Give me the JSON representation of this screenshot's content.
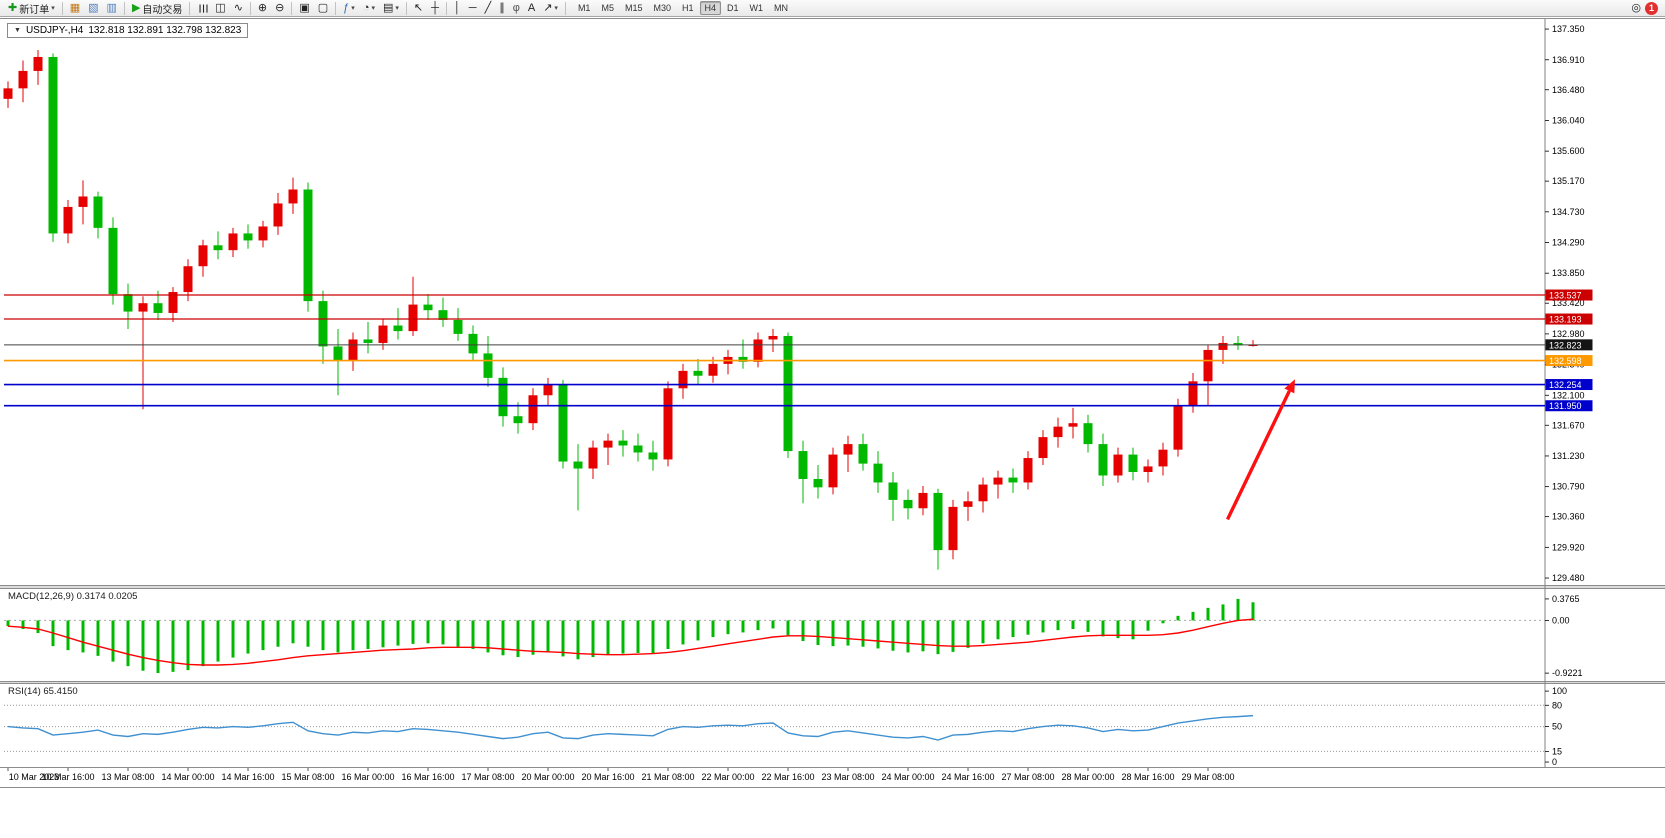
{
  "toolbar": {
    "items": [
      {
        "name": "new-order",
        "glyph": "✚",
        "glyph_color": "#18971c",
        "label": "新订单",
        "caret": true
      },
      {
        "sep": true
      },
      {
        "name": "charts",
        "glyph": "▦",
        "glyph_color": "#c07818"
      },
      {
        "name": "profiles",
        "glyph": "▧",
        "glyph_color": "#4f7dbd"
      },
      {
        "name": "navigator",
        "glyph": "▥",
        "glyph_color": "#4f7dbd"
      },
      {
        "sep": true
      },
      {
        "name": "autotrade",
        "glyph": "▶",
        "glyph_color": "#17a317",
        "label": "自动交易"
      },
      {
        "sep": true
      },
      {
        "name": "bar-chart",
        "glyph": "☰",
        "rot": true
      },
      {
        "name": "candlestick-chart",
        "glyph": "◫"
      },
      {
        "name": "line-chart",
        "glyph": "∿"
      },
      {
        "sep": true
      },
      {
        "name": "zoom-in",
        "glyph": "⊕"
      },
      {
        "name": "zoom-out",
        "glyph": "⊖"
      },
      {
        "sep": true
      },
      {
        "name": "tile-windows",
        "glyph": "▣"
      },
      {
        "name": "auto-arrange",
        "glyph": "▢"
      },
      {
        "sep": true
      },
      {
        "name": "indicators",
        "glyph": "ƒ",
        "glyph_color": "#2d6cb4",
        "caret": true
      },
      {
        "name": "periods",
        "glyph": "◔",
        "caret": true
      },
      {
        "name": "templates",
        "glyph": "▤",
        "caret": true
      },
      {
        "sep": true
      },
      {
        "name": "cursor",
        "glyph": "↖"
      },
      {
        "name": "crosshair",
        "glyph": "┼"
      },
      {
        "sep": true
      },
      {
        "name": "vertical-line",
        "glyph": "│"
      },
      {
        "name": "horizontal-line",
        "glyph": "─"
      },
      {
        "name": "trendline",
        "glyph": "╱"
      },
      {
        "name": "equidistant-channel",
        "glyph": "∥"
      },
      {
        "name": "fibonacci",
        "glyph": "φ",
        "glyph_color": "#555555"
      },
      {
        "name": "text-label",
        "glyph": "A"
      },
      {
        "name": "arrows-tool",
        "glyph": "↗",
        "caret": true
      },
      {
        "sep": true
      }
    ],
    "timeframes": [
      "M1",
      "M5",
      "M15",
      "M30",
      "H1",
      "H4",
      "D1",
      "W1",
      "MN"
    ],
    "active_timeframe": "H4",
    "search_glyph": "◎",
    "notification_count": "1"
  },
  "chart": {
    "collapse_glyph": "▼",
    "title": "USDJPY-,H4",
    "ohlc": "132.818 132.891 132.798 132.823"
  },
  "chart_data": {
    "type": "candlestick",
    "symbol": "USDJPY-",
    "timeframe": "H4",
    "up_color": "#e60000",
    "down_color": "#00b800",
    "ylim": [
      129.38,
      137.48
    ],
    "y_ticks": [
      137.35,
      136.91,
      136.48,
      136.04,
      135.6,
      135.17,
      134.73,
      134.29,
      133.85,
      133.42,
      132.98,
      132.54,
      132.1,
      131.67,
      131.23,
      130.79,
      130.36,
      129.92,
      129.48
    ],
    "candles": [
      [
        136.35,
        136.6,
        136.22,
        136.5
      ],
      [
        136.5,
        136.9,
        136.3,
        136.75
      ],
      [
        136.75,
        137.05,
        136.55,
        136.95
      ],
      [
        136.95,
        137.0,
        134.3,
        134.42
      ],
      [
        134.42,
        134.9,
        134.28,
        134.8
      ],
      [
        134.8,
        135.18,
        134.55,
        134.95
      ],
      [
        134.95,
        135.02,
        134.35,
        134.5
      ],
      [
        134.5,
        134.65,
        133.4,
        133.55
      ],
      [
        133.55,
        133.7,
        133.05,
        133.3
      ],
      [
        133.3,
        133.52,
        131.9,
        133.42
      ],
      [
        133.42,
        133.6,
        133.18,
        133.28
      ],
      [
        133.28,
        133.65,
        133.15,
        133.58
      ],
      [
        133.58,
        134.05,
        133.45,
        133.95
      ],
      [
        133.95,
        134.33,
        133.8,
        134.25
      ],
      [
        134.25,
        134.45,
        134.05,
        134.18
      ],
      [
        134.18,
        134.5,
        134.08,
        134.42
      ],
      [
        134.42,
        134.55,
        134.2,
        134.32
      ],
      [
        134.32,
        134.6,
        134.22,
        134.52
      ],
      [
        134.52,
        135.0,
        134.4,
        134.85
      ],
      [
        134.85,
        135.22,
        134.7,
        135.05
      ],
      [
        135.05,
        135.15,
        133.3,
        133.45
      ],
      [
        133.45,
        133.6,
        132.55,
        132.8
      ],
      [
        132.8,
        133.05,
        132.1,
        132.6
      ],
      [
        132.6,
        133.0,
        132.45,
        132.9
      ],
      [
        132.9,
        133.15,
        132.7,
        132.85
      ],
      [
        132.85,
        133.2,
        132.75,
        133.1
      ],
      [
        133.1,
        133.35,
        132.9,
        133.02
      ],
      [
        133.02,
        133.8,
        132.95,
        133.4
      ],
      [
        133.4,
        133.55,
        133.18,
        133.32
      ],
      [
        133.32,
        133.5,
        133.08,
        133.18
      ],
      [
        133.18,
        133.35,
        132.88,
        132.98
      ],
      [
        132.98,
        133.1,
        132.6,
        132.7
      ],
      [
        132.7,
        132.95,
        132.22,
        132.35
      ],
      [
        132.35,
        132.5,
        131.65,
        131.8
      ],
      [
        131.8,
        132.0,
        131.55,
        131.7
      ],
      [
        131.7,
        132.2,
        131.6,
        132.1
      ],
      [
        132.1,
        132.35,
        131.95,
        132.25
      ],
      [
        132.25,
        132.32,
        131.05,
        131.15
      ],
      [
        131.15,
        131.4,
        130.45,
        131.05
      ],
      [
        131.05,
        131.45,
        130.9,
        131.35
      ],
      [
        131.35,
        131.55,
        131.1,
        131.45
      ],
      [
        131.45,
        131.6,
        131.22,
        131.38
      ],
      [
        131.38,
        131.55,
        131.15,
        131.28
      ],
      [
        131.28,
        131.45,
        131.02,
        131.18
      ],
      [
        131.18,
        132.3,
        131.08,
        132.2
      ],
      [
        132.2,
        132.55,
        132.05,
        132.45
      ],
      [
        132.45,
        132.62,
        132.25,
        132.38
      ],
      [
        132.38,
        132.65,
        132.28,
        132.55
      ],
      [
        132.55,
        132.75,
        132.4,
        132.65
      ],
      [
        132.65,
        132.9,
        132.48,
        132.58
      ],
      [
        132.58,
        133.0,
        132.5,
        132.9
      ],
      [
        132.9,
        133.05,
        132.72,
        132.95
      ],
      [
        132.95,
        133.0,
        131.2,
        131.3
      ],
      [
        131.3,
        131.45,
        130.55,
        130.9
      ],
      [
        130.9,
        131.1,
        130.62,
        130.78
      ],
      [
        130.78,
        131.35,
        130.68,
        131.25
      ],
      [
        131.25,
        131.52,
        131.0,
        131.4
      ],
      [
        131.4,
        131.55,
        131.02,
        131.12
      ],
      [
        131.12,
        131.3,
        130.7,
        130.85
      ],
      [
        130.85,
        131.0,
        130.3,
        130.6
      ],
      [
        130.6,
        130.75,
        130.32,
        130.48
      ],
      [
        130.48,
        130.8,
        130.38,
        130.7
      ],
      [
        130.7,
        130.76,
        129.6,
        129.88
      ],
      [
        129.88,
        130.6,
        129.75,
        130.5
      ],
      [
        130.5,
        130.72,
        130.3,
        130.58
      ],
      [
        130.58,
        130.92,
        130.42,
        130.82
      ],
      [
        130.82,
        131.02,
        130.62,
        130.92
      ],
      [
        130.92,
        131.05,
        130.7,
        130.85
      ],
      [
        130.85,
        131.3,
        130.75,
        131.2
      ],
      [
        131.2,
        131.6,
        131.1,
        131.5
      ],
      [
        131.5,
        131.78,
        131.35,
        131.65
      ],
      [
        131.65,
        131.92,
        131.48,
        131.7
      ],
      [
        131.7,
        131.82,
        131.28,
        131.4
      ],
      [
        131.4,
        131.55,
        130.8,
        130.95
      ],
      [
        130.95,
        131.35,
        130.85,
        131.25
      ],
      [
        131.25,
        131.35,
        130.88,
        131.0
      ],
      [
        131.0,
        131.18,
        130.85,
        131.08
      ],
      [
        131.08,
        131.42,
        130.95,
        131.32
      ],
      [
        131.32,
        132.05,
        131.22,
        131.95
      ],
      [
        131.95,
        132.42,
        131.85,
        132.3
      ],
      [
        132.3,
        132.82,
        131.95,
        132.75
      ],
      [
        132.75,
        132.95,
        132.55,
        132.85
      ],
      [
        132.85,
        132.95,
        132.75,
        132.818
      ],
      [
        132.818,
        132.891,
        132.798,
        132.823
      ]
    ],
    "hlines": [
      {
        "price": 133.537,
        "color": "#cc0000",
        "label": "133.537",
        "width": 1.2
      },
      {
        "price": 133.193,
        "color": "#cc0000",
        "label": "133.193",
        "width": 1.2
      },
      {
        "price": 132.823,
        "color": "#404040",
        "label": "132.823",
        "width": 1.0,
        "label_bg": "#141414"
      },
      {
        "price": 132.598,
        "color": "#ff9900",
        "label": "132.598",
        "width": 1.6
      },
      {
        "price": 132.254,
        "color": "#0000cc",
        "label": "132.254",
        "width": 1.6
      },
      {
        "price": 131.95,
        "color": "#0000cc",
        "label": "131.950",
        "width": 1.6
      }
    ],
    "time_labels": [
      "10 Mar 2023",
      "10 Mar 16:00",
      "13 Mar 08:00",
      "14 Mar 00:00",
      "14 Mar 16:00",
      "15 Mar 08:00",
      "16 Mar 00:00",
      "16 Mar 16:00",
      "17 Mar 08:00",
      "20 Mar 00:00",
      "20 Mar 16:00",
      "21 Mar 08:00",
      "22 Mar 00:00",
      "22 Mar 16:00",
      "23 Mar 08:00",
      "24 Mar 00:00",
      "24 Mar 16:00",
      "27 Mar 08:00",
      "28 Mar 00:00",
      "28 Mar 16:00",
      "29 Mar 08:00"
    ],
    "bars_per_label": 4,
    "arrow": {
      "from_bar": 81.3,
      "from_price": 130.32,
      "to_bar": 85.8,
      "to_price": 132.33,
      "color": "#ff1010",
      "width": 3.4
    },
    "macd": {
      "label": "MACD(12,26,9) 0.3174 0.0205",
      "tick_values": [
        0.3765,
        0,
        -0.9221
      ],
      "tick_labels": [
        "0.3765",
        "0.00",
        "-0.9221"
      ],
      "ylim": [
        -1.06,
        0.55
      ],
      "hist_color": "#00b800",
      "signal_color": "#ff0000",
      "histogram": [
        -0.1,
        -0.15,
        -0.22,
        -0.45,
        -0.52,
        -0.56,
        -0.62,
        -0.72,
        -0.8,
        -0.88,
        -0.92,
        -0.9,
        -0.87,
        -0.8,
        -0.72,
        -0.65,
        -0.58,
        -0.52,
        -0.46,
        -0.4,
        -0.46,
        -0.52,
        -0.56,
        -0.52,
        -0.5,
        -0.47,
        -0.44,
        -0.41,
        -0.4,
        -0.42,
        -0.46,
        -0.5,
        -0.56,
        -0.61,
        -0.64,
        -0.6,
        -0.55,
        -0.63,
        -0.68,
        -0.64,
        -0.6,
        -0.58,
        -0.57,
        -0.58,
        -0.5,
        -0.42,
        -0.35,
        -0.29,
        -0.24,
        -0.21,
        -0.17,
        -0.14,
        -0.26,
        -0.36,
        -0.43,
        -0.45,
        -0.44,
        -0.46,
        -0.49,
        -0.53,
        -0.56,
        -0.54,
        -0.59,
        -0.55,
        -0.48,
        -0.4,
        -0.33,
        -0.29,
        -0.25,
        -0.21,
        -0.17,
        -0.15,
        -0.2,
        -0.28,
        -0.31,
        -0.33,
        -0.18,
        -0.05,
        0.08,
        0.15,
        0.22,
        0.28,
        0.3765,
        0.3174
      ],
      "signal": [
        -0.1,
        -0.12,
        -0.15,
        -0.22,
        -0.3,
        -0.38,
        -0.45,
        -0.52,
        -0.59,
        -0.65,
        -0.7,
        -0.74,
        -0.77,
        -0.78,
        -0.78,
        -0.77,
        -0.75,
        -0.72,
        -0.69,
        -0.65,
        -0.62,
        -0.6,
        -0.58,
        -0.56,
        -0.54,
        -0.52,
        -0.51,
        -0.5,
        -0.48,
        -0.47,
        -0.47,
        -0.47,
        -0.48,
        -0.5,
        -0.52,
        -0.54,
        -0.55,
        -0.56,
        -0.58,
        -0.59,
        -0.6,
        -0.6,
        -0.59,
        -0.58,
        -0.56,
        -0.53,
        -0.49,
        -0.45,
        -0.41,
        -0.37,
        -0.33,
        -0.29,
        -0.27,
        -0.27,
        -0.28,
        -0.3,
        -0.32,
        -0.34,
        -0.36,
        -0.38,
        -0.4,
        -0.42,
        -0.44,
        -0.45,
        -0.45,
        -0.44,
        -0.42,
        -0.4,
        -0.38,
        -0.35,
        -0.32,
        -0.29,
        -0.27,
        -0.26,
        -0.26,
        -0.26,
        -0.26,
        -0.25,
        -0.22,
        -0.17,
        -0.11,
        -0.05,
        0.0,
        0.0205
      ]
    },
    "rsi": {
      "label": "RSI(14) 65.4150",
      "tick_values": [
        100,
        80,
        50,
        15,
        0
      ],
      "tick_labels": [
        "100",
        "80",
        "50",
        "15",
        "0"
      ],
      "levels": [
        80,
        50,
        15
      ],
      "ylim": [
        -7,
        110
      ],
      "color": "#4090d0",
      "values": [
        50,
        48,
        47,
        38,
        40,
        42,
        45,
        38,
        36,
        40,
        39,
        42,
        46,
        49,
        48,
        50,
        49,
        51,
        54,
        56,
        44,
        40,
        38,
        42,
        41,
        44,
        43,
        47,
        46,
        44,
        42,
        39,
        36,
        33,
        35,
        40,
        42,
        34,
        33,
        38,
        40,
        39,
        38,
        37,
        46,
        50,
        49,
        51,
        52,
        51,
        54,
        55,
        41,
        37,
        36,
        42,
        44,
        41,
        38,
        35,
        34,
        36,
        31,
        38,
        39,
        42,
        44,
        43,
        47,
        50,
        52,
        51,
        48,
        43,
        46,
        44,
        45,
        50,
        55,
        58,
        61,
        63,
        64,
        65.415
      ]
    }
  }
}
